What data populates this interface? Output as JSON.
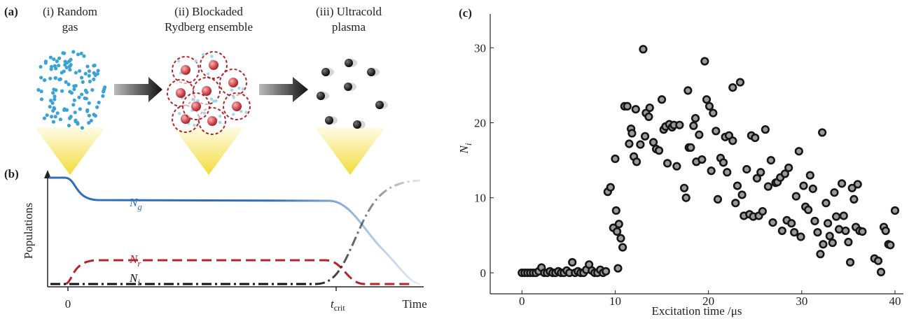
{
  "panel_a": {
    "label": "(a)",
    "stages": [
      {
        "lines": [
          "(i) Random",
          "gas"
        ]
      },
      {
        "lines": [
          "(ii) Blockaded",
          "Rydberg ensemble"
        ]
      },
      {
        "lines": [
          "(iii) Ultracold",
          "plasma"
        ]
      }
    ]
  },
  "panel_b": {
    "label": "(b)",
    "y_label": "Populations",
    "x_label": "Time",
    "x_marks": {
      "zero": "0",
      "t_crit": {
        "main": "t",
        "sub": "crit"
      }
    },
    "curves": {
      "ground": {
        "main": "N",
        "sub": "g",
        "color": "#2e6fba"
      },
      "rydberg": {
        "main": "N",
        "sub": "r",
        "color": "#b3242b"
      },
      "ion": {
        "main": "N",
        "sub": "i",
        "color": "#111111"
      }
    }
  },
  "chart_data": {
    "type": "scatter",
    "panel_label": "(c)",
    "x_label": "Excitation time /μs",
    "y_label": {
      "main": "N",
      "sub": "i"
    },
    "marker_fill": "#9a9a9a",
    "marker_stroke": "#151515",
    "x": [
      0,
      0.3,
      0.6,
      0.9,
      1.2,
      1.5,
      1.8,
      2.1,
      2.4,
      2.7,
      3,
      3.3,
      3.6,
      3.9,
      4.2,
      4.5,
      4.8,
      5.1,
      5.4,
      5.7,
      6,
      6.3,
      6.6,
      6.9,
      7.2,
      7.5,
      7.8,
      8.1,
      8.4,
      8.7,
      9,
      9.2,
      9.5,
      9.8,
      10,
      10.1,
      10.2,
      10.3,
      10.4,
      10.6,
      10.8,
      11,
      11.3,
      11.5,
      11.7,
      11.8,
      12,
      12.2,
      12.3,
      12.7,
      13,
      13.2,
      13.3,
      13.6,
      13.7,
      14.1,
      14.4,
      14.7,
      15,
      15.2,
      15.4,
      15.6,
      15.8,
      16.1,
      16.3,
      16.6,
      16.9,
      17.4,
      17.6,
      17.8,
      17.9,
      18.1,
      18.4,
      18.6,
      18.7,
      19,
      19.3,
      19.6,
      19.8,
      20.1,
      20.3,
      20.5,
      20.8,
      21,
      21.3,
      21.6,
      21.8,
      22,
      22.2,
      22.6,
      22.6,
      22.9,
      23.1,
      23.4,
      23.6,
      23.8,
      24.1,
      24.4,
      24.6,
      24.8,
      25,
      25.2,
      25.4,
      25.6,
      25.8,
      26.1,
      26.4,
      26.7,
      26.9,
      27.2,
      27.4,
      27.7,
      27.9,
      28.2,
      28.4,
      28.6,
      28.9,
      29.2,
      29.4,
      29.7,
      29.9,
      30.2,
      30.4,
      30.7,
      30.9,
      31.2,
      31.4,
      31.7,
      32,
      32.2,
      32.3,
      32.6,
      32.8,
      33,
      33.3,
      33.5,
      33.7,
      34,
      34.3,
      34.5,
      34.7,
      35,
      35.2,
      35.4,
      35.6,
      35.8,
      36,
      36.2,
      36.5,
      37.8,
      38.2,
      38.5,
      38.8,
      39,
      39.3,
      39.5,
      40
    ],
    "values": [
      0,
      0,
      0,
      0,
      0,
      0,
      0.2,
      0.7,
      0,
      0,
      0.2,
      0,
      0,
      0.2,
      0,
      0,
      0.3,
      0,
      1.4,
      0,
      0.2,
      0,
      0,
      0.4,
      1.1,
      0.3,
      0,
      0,
      0.4,
      0,
      0.2,
      10.8,
      11.4,
      6,
      15.2,
      8.3,
      5.5,
      0.6,
      6.5,
      4.6,
      3.4,
      22.2,
      22.2,
      17.2,
      19.2,
      18.6,
      15.5,
      21.8,
      14.8,
      17.1,
      29.8,
      18.2,
      21.3,
      20.8,
      22,
      17.4,
      16.5,
      16.3,
      23.1,
      19.1,
      19.5,
      14.6,
      19.8,
      19.4,
      19.7,
      14.2,
      19.7,
      11.3,
      10,
      24.3,
      16.7,
      16.7,
      19.6,
      20.6,
      14.8,
      18.4,
      15.1,
      28.2,
      23.1,
      22.2,
      13.6,
      21.3,
      18.9,
      9.8,
      15.3,
      14.7,
      18.1,
      13.4,
      18.3,
      17.6,
      24.7,
      9.3,
      11.6,
      25.4,
      10.4,
      7.6,
      13.8,
      7.8,
      18.3,
      7.5,
      18,
      12.6,
      7.6,
      13.4,
      8.2,
      19.1,
      11.5,
      15,
      6.7,
      12,
      12.1,
      12.7,
      5.6,
      13.2,
      7,
      14,
      6.6,
      5.4,
      10.2,
      16.2,
      4.8,
      11.6,
      8.8,
      8.4,
      13,
      11.2,
      6.9,
      5.4,
      2.5,
      18.7,
      3.8,
      9.3,
      6.6,
      4.9,
      4,
      10.7,
      7.5,
      5.8,
      11.9,
      7.6,
      5.6,
      4.1,
      1.4,
      11.3,
      9.8,
      6.1,
      11.8,
      5.6,
      5.5,
      1.9,
      1.6,
      0.1,
      6.1,
      5.6,
      3.8,
      3.7,
      8.3
    ],
    "xlim": [
      -3.4,
      40.9
    ],
    "ylim": [
      -2.8,
      34.5
    ],
    "xticks": [
      0,
      10,
      20,
      30,
      40
    ],
    "yticks": [
      0,
      10,
      20,
      30
    ]
  }
}
